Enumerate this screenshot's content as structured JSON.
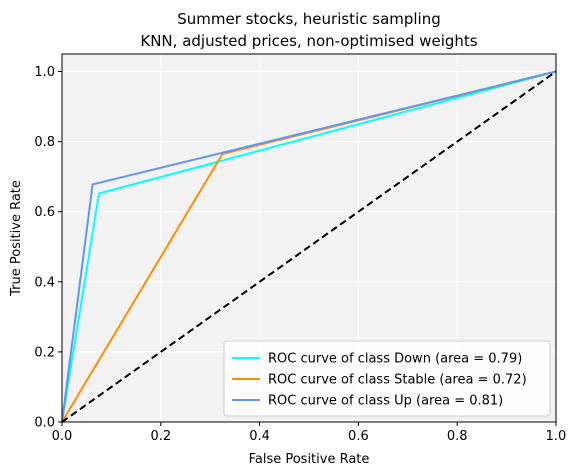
{
  "chart_data": {
    "type": "line",
    "title": "Summer stocks, heuristic sampling",
    "subtitle": "KNN, adjusted prices, non-optimised weights",
    "xlabel": "False Positive Rate",
    "ylabel": "True Positive Rate",
    "xlim": [
      0.0,
      1.0
    ],
    "ylim": [
      0.0,
      1.05
    ],
    "x_ticks": [
      "0.0",
      "0.2",
      "0.4",
      "0.6",
      "0.8",
      "1.0"
    ],
    "y_ticks": [
      "0.0",
      "0.2",
      "0.4",
      "0.6",
      "0.8",
      "1.0"
    ],
    "grid": true,
    "legend_position": "lower-right",
    "background": "#f2f2f2",
    "series": [
      {
        "name": "ROC curve of class Down (area = 0.79)",
        "color": "#00ffff",
        "points": [
          [
            0.0,
            0.0
          ],
          [
            0.075,
            0.652
          ],
          [
            1.0,
            1.0
          ]
        ]
      },
      {
        "name": "ROC curve of class Stable (area = 0.72)",
        "color": "#ff8c00",
        "points": [
          [
            0.0,
            0.0
          ],
          [
            0.325,
            0.765
          ],
          [
            1.0,
            1.0
          ]
        ]
      },
      {
        "name": "ROC curve of class Up (area = 0.81)",
        "color": "#6495ed",
        "points": [
          [
            0.0,
            0.0
          ],
          [
            0.062,
            0.678
          ],
          [
            1.0,
            1.0
          ]
        ]
      }
    ],
    "reference_line": {
      "color": "#000000",
      "style": "dashed",
      "points": [
        [
          0.0,
          0.0
        ],
        [
          1.0,
          1.0
        ]
      ]
    }
  }
}
